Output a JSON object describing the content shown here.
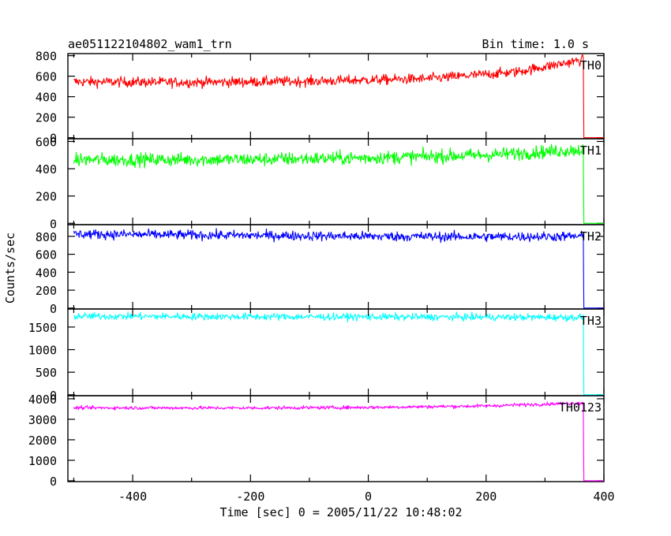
{
  "chart_data": {
    "type": "line",
    "title_left": "ae051122104802_wam1_trn",
    "title_right": "Bin time: 1.0 s",
    "xlabel": "Time [sec] 0 = 2005/11/22 10:48:02",
    "ylabel": "Counts/sec",
    "xlim": [
      -510,
      400
    ],
    "x_ticks": [
      -400,
      -200,
      0,
      200,
      400
    ],
    "x_start": -500,
    "x_drop": 365,
    "x_end": 400,
    "panels": [
      {
        "name": "TH0",
        "color": "#ff0000",
        "ylim": [
          -10,
          820
        ],
        "y_ticks": [
          0,
          200,
          400,
          600,
          800
        ],
        "trend": [
          [
            -500,
            545
          ],
          [
            -300,
            540
          ],
          [
            -100,
            550
          ],
          [
            100,
            575
          ],
          [
            250,
            640
          ],
          [
            365,
            760
          ]
        ],
        "noise": 35,
        "after_drop": 0
      },
      {
        "name": "TH1",
        "color": "#00ff00",
        "ylim": [
          -10,
          620
        ],
        "y_ticks": [
          0,
          200,
          400,
          600
        ],
        "trend": [
          [
            -500,
            465
          ],
          [
            -200,
            468
          ],
          [
            0,
            480
          ],
          [
            200,
            500
          ],
          [
            365,
            540
          ]
        ],
        "noise": 35,
        "after_drop": 0
      },
      {
        "name": "TH2",
        "color": "#0000ff",
        "ylim": [
          -10,
          930
        ],
        "y_ticks": [
          0,
          200,
          400,
          600,
          800
        ],
        "trend": [
          [
            -500,
            825
          ],
          [
            -200,
            810
          ],
          [
            0,
            800
          ],
          [
            200,
            795
          ],
          [
            365,
            800
          ]
        ],
        "noise": 38,
        "after_drop": 0
      },
      {
        "name": "TH3",
        "color": "#00ffff",
        "ylim": [
          -20,
          1900
        ],
        "y_ticks": [
          0,
          500,
          1000,
          1500
        ],
        "y_tick_labels": [
          "0",
          "500",
          "1000",
          "1500"
        ],
        "trend": [
          [
            -500,
            1740
          ],
          [
            -200,
            1730
          ],
          [
            0,
            1725
          ],
          [
            200,
            1720
          ],
          [
            365,
            1715
          ]
        ],
        "noise": 55,
        "after_drop": 0
      },
      {
        "name": "TH0123",
        "color": "#ff00ff",
        "ylim": [
          -40,
          4150
        ],
        "y_ticks": [
          0,
          1000,
          2000,
          3000,
          4000
        ],
        "trend": [
          [
            -500,
            3560
          ],
          [
            -200,
            3550
          ],
          [
            0,
            3580
          ],
          [
            200,
            3650
          ],
          [
            365,
            3800
          ]
        ],
        "noise": 60,
        "after_drop": 0
      }
    ]
  }
}
